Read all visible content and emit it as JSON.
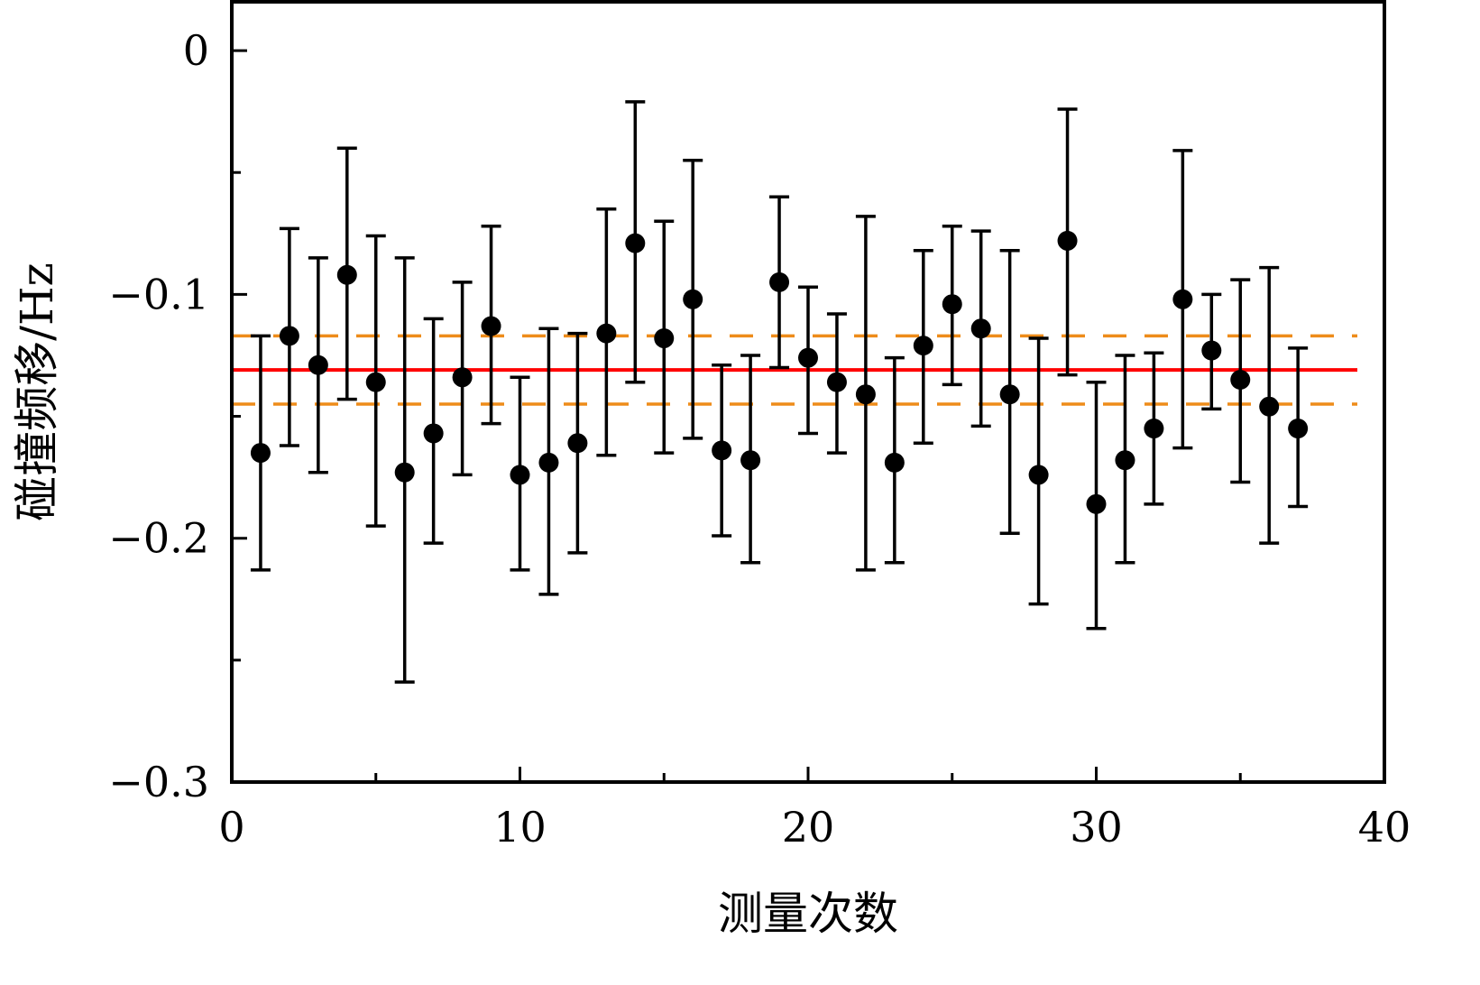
{
  "chart_data": {
    "type": "scatter",
    "xlabel": "测量次数",
    "ylabel": "碰撞频移/Hz",
    "xlim": [
      0,
      40
    ],
    "ylim": [
      -0.3,
      0.02
    ],
    "xticks": [
      0,
      10,
      20,
      30,
      40
    ],
    "xtick_labels": [
      "0",
      "10",
      "20",
      "30",
      "40"
    ],
    "yticks": [
      0,
      -0.1,
      -0.2,
      -0.3
    ],
    "ytick_labels": [
      "0",
      "−0.1",
      "−0.2",
      "−0.3"
    ],
    "x_minor_ticks": [
      5,
      15,
      25,
      35
    ],
    "y_minor_ticks": [
      -0.05,
      -0.15,
      -0.25
    ],
    "grid": false,
    "series": [
      {
        "marker": "circle",
        "color": "#000000",
        "x": [
          1,
          2,
          3,
          4,
          5,
          6,
          7,
          8,
          9,
          10,
          11,
          12,
          13,
          14,
          15,
          16,
          17,
          18,
          19,
          20,
          21,
          22,
          23,
          24,
          25,
          26,
          27,
          28,
          29,
          30,
          31,
          32,
          33,
          34,
          35,
          36,
          37
        ],
        "y": [
          -0.165,
          -0.117,
          -0.129,
          -0.092,
          -0.136,
          -0.173,
          -0.157,
          -0.134,
          -0.113,
          -0.174,
          -0.169,
          -0.161,
          -0.116,
          -0.079,
          -0.118,
          -0.102,
          -0.164,
          -0.168,
          -0.095,
          -0.126,
          -0.136,
          -0.141,
          -0.169,
          -0.121,
          -0.104,
          -0.114,
          -0.141,
          -0.174,
          -0.078,
          -0.186,
          -0.168,
          -0.155,
          -0.102,
          -0.123,
          -0.135,
          -0.146,
          -0.155
        ],
        "y_upper": [
          -0.117,
          -0.073,
          -0.085,
          -0.04,
          -0.076,
          -0.085,
          -0.11,
          -0.095,
          -0.072,
          -0.134,
          -0.114,
          -0.116,
          -0.065,
          -0.021,
          -0.07,
          -0.045,
          -0.129,
          -0.125,
          -0.06,
          -0.097,
          -0.108,
          -0.068,
          -0.126,
          -0.082,
          -0.072,
          -0.074,
          -0.082,
          -0.118,
          -0.024,
          -0.136,
          -0.125,
          -0.124,
          -0.041,
          -0.1,
          -0.094,
          -0.089,
          -0.122
        ],
        "y_lower": [
          -0.213,
          -0.162,
          -0.173,
          -0.143,
          -0.195,
          -0.259,
          -0.202,
          -0.174,
          -0.153,
          -0.213,
          -0.223,
          -0.206,
          -0.166,
          -0.136,
          -0.165,
          -0.159,
          -0.199,
          -0.21,
          -0.13,
          -0.157,
          -0.165,
          -0.213,
          -0.21,
          -0.161,
          -0.137,
          -0.154,
          -0.198,
          -0.227,
          -0.133,
          -0.237,
          -0.21,
          -0.186,
          -0.163,
          -0.147,
          -0.177,
          -0.202,
          -0.187
        ]
      }
    ],
    "reference_lines": [
      {
        "kind": "mean",
        "y": -0.131,
        "color": "#ff0000",
        "style": "solid"
      },
      {
        "kind": "upper-bound",
        "y": -0.117,
        "color": "#ee8c1a",
        "style": "dashed"
      },
      {
        "kind": "lower-bound",
        "y": -0.145,
        "color": "#ee8c1a",
        "style": "dashed"
      }
    ],
    "colors": {
      "points": "#000000",
      "mean_line": "#ff0000",
      "bound_lines": "#ee8c1a"
    }
  }
}
